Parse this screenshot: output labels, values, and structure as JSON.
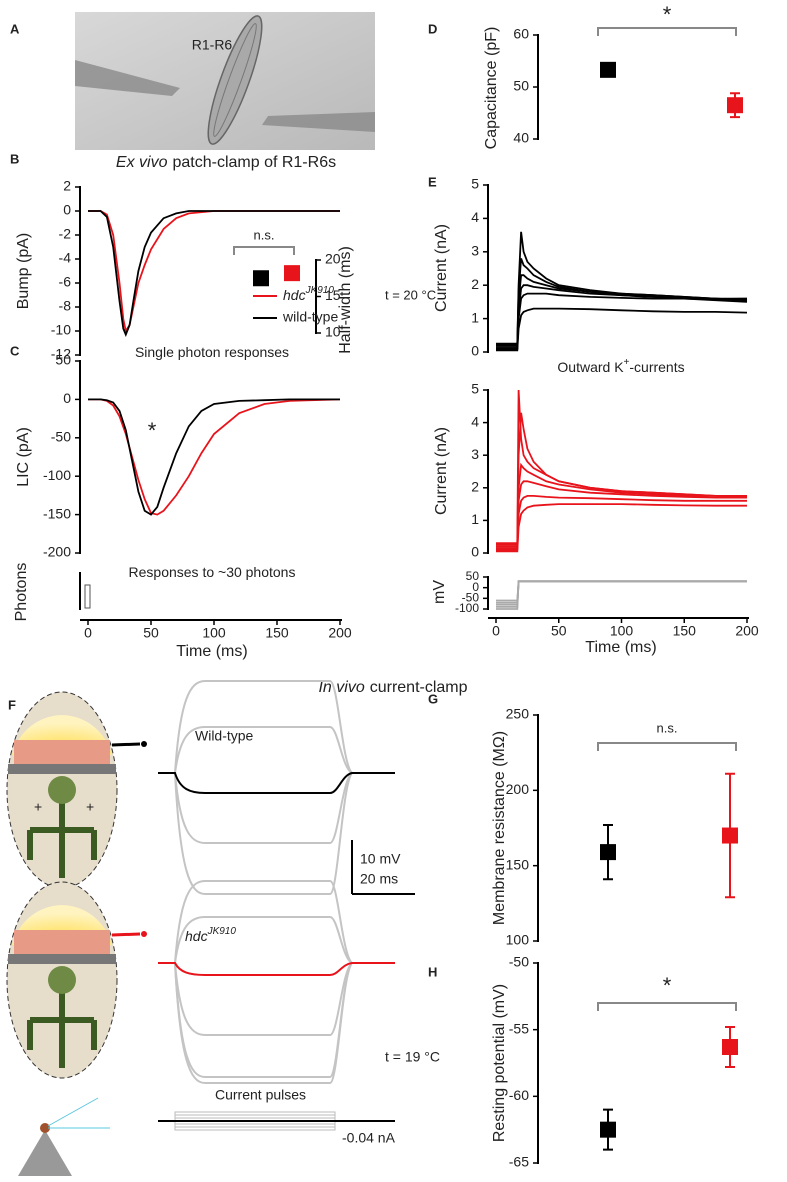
{
  "panel_labels": [
    "A",
    "B",
    "C",
    "D",
    "E",
    "F",
    "G",
    "H"
  ],
  "image": {
    "label": "R1-R6",
    "caption": [
      "Ex vivo",
      "patch-clamp of R1-R6s"
    ]
  },
  "section_title": [
    "In vivo",
    "current-clamp"
  ],
  "in_vivo": {
    "wild_type_label": "Wild-type",
    "mutant_label": "hdcJK910",
    "scale_bar": [
      "10 mV",
      "20 ms"
    ],
    "temperature": "t = 19 °C",
    "stimulus_label": "Current pulses",
    "stimulus_value": "-0.04 nA"
  },
  "chart_data": [
    {
      "type": "line",
      "ylabel": "Bump (pA)",
      "subtitle": [
        "Single photon responses"
      ],
      "xlim": [
        0,
        200
      ],
      "ylim": [
        -12,
        2
      ],
      "yticks": [
        -12,
        -10,
        -8,
        -6,
        -4,
        -2,
        0,
        2
      ],
      "x": [
        0,
        10,
        15,
        20,
        25,
        28,
        30,
        33,
        36,
        40,
        45,
        50,
        60,
        70,
        80,
        100,
        200
      ],
      "series": [
        {
          "color": "#e8141c",
          "values": [
            0,
            0,
            -0.3,
            -2,
            -6,
            -9,
            -10,
            -9.5,
            -8,
            -6,
            -4.5,
            -3.2,
            -1.5,
            -0.6,
            -0.2,
            0,
            0
          ]
        },
        {
          "color": "#000000",
          "values": [
            0,
            0,
            -0.5,
            -3,
            -7.5,
            -9.8,
            -10.3,
            -9.5,
            -7.5,
            -5,
            -3,
            -1.8,
            -0.6,
            -0.2,
            0,
            0,
            0
          ]
        }
      ]
    },
    {
      "type": "errorbar",
      "ylabel": "Half-width (ms)",
      "ylim": [
        10,
        20
      ],
      "yticks": [
        10,
        15,
        20
      ],
      "annotations": [
        "n.s."
      ],
      "series": [
        {
          "color": "#000000",
          "values": [
            17.5
          ],
          "errors": [
            0.5
          ]
        },
        {
          "color": "#e8141c",
          "values": [
            18.2
          ],
          "errors": [
            0.5
          ]
        }
      ]
    },
    {
      "type": "line",
      "ylabel": "LIC (pA)",
      "xlabel": "Time (ms)",
      "subtitle": [
        "Responses to ~30 photons"
      ],
      "stimulus_label": "Photons",
      "annotations": [
        "*",
        "t = 20 °C"
      ],
      "xlim": [
        0,
        200
      ],
      "xticks": [
        0,
        50,
        100,
        150,
        200
      ],
      "ylim": [
        -200,
        50
      ],
      "yticks": [
        -200,
        -150,
        -100,
        -50,
        0,
        50
      ],
      "x": [
        0,
        10,
        15,
        20,
        25,
        30,
        35,
        40,
        45,
        50,
        55,
        60,
        70,
        80,
        90,
        100,
        120,
        140,
        160,
        200
      ],
      "series": [
        {
          "name": "hdcJK910",
          "color": "#e8141c",
          "values": [
            0,
            0,
            -2,
            -8,
            -22,
            -45,
            -75,
            -105,
            -130,
            -148,
            -150,
            -145,
            -125,
            -100,
            -70,
            -45,
            -18,
            -6,
            -2,
            0
          ]
        },
        {
          "name": "wild-type",
          "color": "#000000",
          "values": [
            0,
            0,
            -1,
            -4,
            -15,
            -40,
            -80,
            -120,
            -145,
            -150,
            -140,
            -115,
            -70,
            -35,
            -15,
            -6,
            -2,
            -1,
            0,
            0
          ]
        }
      ]
    },
    {
      "type": "errorbar",
      "ylabel": "Capacitance (pF)",
      "ylim": [
        40,
        60
      ],
      "yticks": [
        40,
        50,
        60
      ],
      "annotations": [
        "*"
      ],
      "series": [
        {
          "color": "#000000",
          "values": [
            53.3
          ],
          "errors": [
            0.6
          ]
        },
        {
          "color": "#e8141c",
          "values": [
            46.5
          ],
          "errors": [
            2.3
          ]
        }
      ]
    },
    {
      "type": "line",
      "ylabel": "Current (nA)",
      "subtitle": [
        "Outward K",
        "+",
        "-currents"
      ],
      "xlim": [
        0,
        200
      ],
      "ylim": [
        0,
        5
      ],
      "yticks": [
        0,
        1,
        2,
        3,
        4,
        5
      ],
      "x": [
        0,
        17,
        18,
        20,
        22,
        25,
        30,
        40,
        50,
        75,
        100,
        125,
        150,
        175,
        200
      ],
      "series": [
        {
          "color": "#000000",
          "values": [
            0.25,
            0.25,
            2.0,
            3.6,
            3.0,
            2.7,
            2.5,
            2.2,
            2.0,
            1.85,
            1.75,
            1.7,
            1.65,
            1.6,
            1.55
          ]
        },
        {
          "color": "#000000",
          "values": [
            0.2,
            0.2,
            1.8,
            2.8,
            2.6,
            2.5,
            2.3,
            2.1,
            1.95,
            1.8,
            1.7,
            1.65,
            1.6,
            1.6,
            1.6
          ]
        },
        {
          "color": "#000000",
          "values": [
            0.15,
            0.15,
            1.5,
            2.3,
            2.3,
            2.2,
            2.1,
            2.0,
            1.9,
            1.8,
            1.75,
            1.7,
            1.65,
            1.6,
            1.55
          ]
        },
        {
          "color": "#000000",
          "values": [
            0.1,
            0.1,
            1.2,
            1.9,
            2.0,
            2.0,
            1.95,
            1.9,
            1.85,
            1.75,
            1.7,
            1.65,
            1.6,
            1.55,
            1.5
          ]
        },
        {
          "color": "#000000",
          "values": [
            0.1,
            0.1,
            1.0,
            1.6,
            1.7,
            1.75,
            1.75,
            1.75,
            1.7,
            1.65,
            1.62,
            1.6,
            1.6,
            1.58,
            1.6
          ]
        },
        {
          "color": "#000000",
          "values": [
            0.05,
            0.05,
            0.7,
            1.1,
            1.2,
            1.25,
            1.3,
            1.3,
            1.3,
            1.28,
            1.25,
            1.22,
            1.2,
            1.2,
            1.18
          ]
        }
      ]
    },
    {
      "type": "line",
      "ylabel": "Current (nA)",
      "xlim": [
        0,
        200
      ],
      "ylim": [
        0,
        5
      ],
      "yticks": [
        0,
        1,
        2,
        3,
        4,
        5
      ],
      "x": [
        0,
        17,
        18,
        20,
        22,
        25,
        30,
        40,
        50,
        75,
        100,
        125,
        150,
        175,
        200
      ],
      "series": [
        {
          "color": "#e8141c",
          "values": [
            0.3,
            0.3,
            5.0,
            3.5,
            3.0,
            2.8,
            2.6,
            2.4,
            2.2,
            2.0,
            1.9,
            1.85,
            1.8,
            1.75,
            1.7
          ]
        },
        {
          "color": "#e8141c",
          "values": [
            0.25,
            0.25,
            3.0,
            4.3,
            3.8,
            3.2,
            2.8,
            2.4,
            2.2,
            2.0,
            1.9,
            1.85,
            1.8,
            1.75,
            1.75
          ]
        },
        {
          "color": "#e8141c",
          "values": [
            0.2,
            0.2,
            2.0,
            2.7,
            2.6,
            2.5,
            2.4,
            2.2,
            2.1,
            1.95,
            1.85,
            1.8,
            1.75,
            1.75,
            1.72
          ]
        },
        {
          "color": "#e8141c",
          "values": [
            0.15,
            0.15,
            1.6,
            2.1,
            2.2,
            2.2,
            2.15,
            2.05,
            1.95,
            1.85,
            1.8,
            1.75,
            1.72,
            1.7,
            1.7
          ]
        },
        {
          "color": "#e8141c",
          "values": [
            0.1,
            0.1,
            1.2,
            1.6,
            1.7,
            1.75,
            1.75,
            1.72,
            1.7,
            1.68,
            1.65,
            1.62,
            1.6,
            1.6,
            1.6
          ]
        },
        {
          "color": "#e8141c",
          "values": [
            0.05,
            0.05,
            0.8,
            1.2,
            1.3,
            1.4,
            1.45,
            1.48,
            1.5,
            1.5,
            1.5,
            1.48,
            1.46,
            1.45,
            1.45
          ]
        }
      ]
    },
    {
      "type": "line",
      "ylabel": "mV",
      "xlabel": "Time (ms)",
      "xlim": [
        0,
        200
      ],
      "xticks": [
        0,
        50,
        100,
        150,
        200
      ],
      "ylim": [
        -100,
        50
      ],
      "yticks": [
        -100,
        -50,
        0,
        50
      ],
      "x": [
        0,
        17,
        18,
        200
      ],
      "series": [
        {
          "color": "#aaaaaa",
          "values": [
            -100,
            -100,
            30,
            30
          ]
        },
        {
          "color": "#aaaaaa",
          "values": [
            -90,
            -90,
            30,
            30
          ]
        },
        {
          "color": "#aaaaaa",
          "values": [
            -80,
            -80,
            30,
            30
          ]
        },
        {
          "color": "#aaaaaa",
          "values": [
            -70,
            -70,
            30,
            30
          ]
        },
        {
          "color": "#aaaaaa",
          "values": [
            -60,
            -60,
            30,
            30
          ]
        }
      ]
    },
    {
      "type": "errorbar",
      "ylabel": "Membrane resistance (MΩ)",
      "ylim": [
        100,
        250
      ],
      "yticks": [
        100,
        150,
        200,
        250
      ],
      "annotations": [
        "n.s."
      ],
      "series": [
        {
          "color": "#000000",
          "values": [
            159
          ],
          "errors": [
            18
          ]
        },
        {
          "color": "#e8141c",
          "values": [
            170
          ],
          "errors": [
            41
          ]
        }
      ]
    },
    {
      "type": "errorbar",
      "ylabel": "Resting potential (mV)",
      "ylim": [
        -65,
        -50
      ],
      "yticks": [
        -65,
        -60,
        -55,
        -50
      ],
      "annotations": [
        "*"
      ],
      "series": [
        {
          "color": "#000000",
          "values": [
            -62.5
          ],
          "errors": [
            1.5
          ]
        },
        {
          "color": "#e8141c",
          "values": [
            -56.3
          ],
          "errors": [
            1.5
          ]
        }
      ]
    }
  ]
}
